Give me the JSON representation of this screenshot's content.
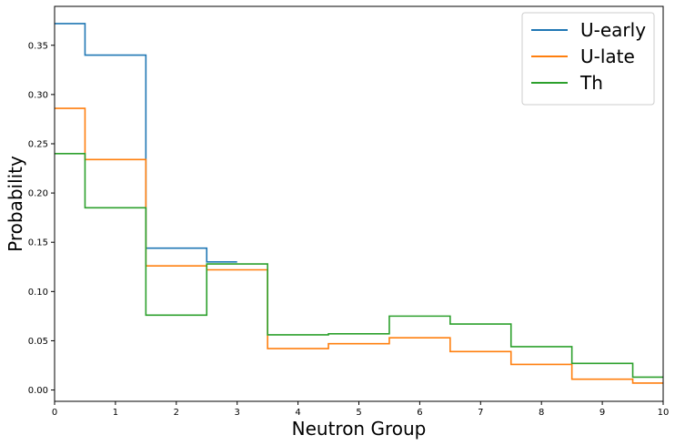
{
  "chart_data": {
    "type": "line",
    "step": "mid",
    "xlabel": "Neutron Group",
    "ylabel": "Probability",
    "xlim": [
      0,
      10
    ],
    "ylim": [
      -0.0115,
      0.3895
    ],
    "xticks": [
      0,
      1,
      2,
      3,
      4,
      5,
      6,
      7,
      8,
      9,
      10
    ],
    "yticks": [
      0.0,
      0.05,
      0.1,
      0.15,
      0.2,
      0.25,
      0.3,
      0.35
    ],
    "ytick_labels": [
      "0.00",
      "0.05",
      "0.10",
      "0.15",
      "0.20",
      "0.25",
      "0.30",
      "0.35"
    ],
    "grid": false,
    "legend_position": "top-right",
    "x": [
      0,
      1,
      2,
      3,
      4,
      5,
      6,
      7,
      8,
      9,
      10
    ],
    "series": [
      {
        "name": "U-early",
        "color": "#1f77b4",
        "values": [
          0.372,
          0.34,
          0.144,
          0.13,
          null,
          null,
          null,
          null,
          null,
          null,
          null
        ]
      },
      {
        "name": "U-late",
        "color": "#ff7f0e",
        "values": [
          0.286,
          0.234,
          0.126,
          0.122,
          0.042,
          0.047,
          0.053,
          0.039,
          0.026,
          0.011,
          0.007
        ]
      },
      {
        "name": "Th",
        "color": "#2ca02c",
        "values": [
          0.24,
          0.185,
          0.076,
          0.128,
          0.056,
          0.057,
          0.075,
          0.067,
          0.044,
          0.027,
          0.013
        ]
      }
    ]
  }
}
